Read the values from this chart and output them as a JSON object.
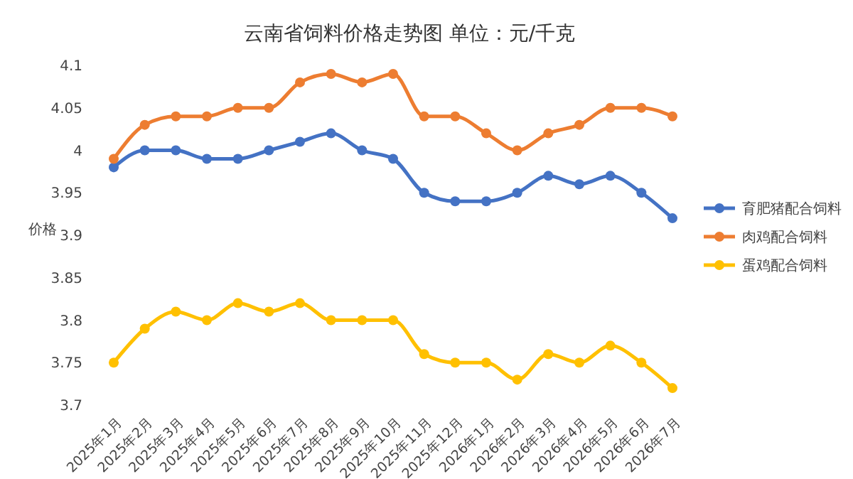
{
  "chart_data": {
    "type": "line",
    "title": "云南省饲料价格走势图        单位：元/千克",
    "ylabel": "价格",
    "categories": [
      "2025年1月",
      "2025年2月",
      "2025年3月",
      "2025年4月",
      "2025年5月",
      "2025年6月",
      "2025年7月",
      "2025年8月",
      "2025年9月",
      "2025年10月",
      "2025年11月",
      "2025年12月",
      "2026年1月",
      "2026年2月",
      "2026年3月",
      "2026年4月",
      "2026年5月",
      "2026年6月",
      "2026年7月"
    ],
    "series": [
      {
        "name": "育肥猪配合饲料",
        "color": "#4472c4",
        "values": [
          3.98,
          4.0,
          4.0,
          3.99,
          3.99,
          4.0,
          4.01,
          4.02,
          4.0,
          3.99,
          3.95,
          3.94,
          3.94,
          3.95,
          3.97,
          3.96,
          3.97,
          3.95,
          3.92
        ]
      },
      {
        "name": "肉鸡配合饲料",
        "color": "#ed7d31",
        "values": [
          3.99,
          4.03,
          4.04,
          4.04,
          4.05,
          4.05,
          4.08,
          4.09,
          4.08,
          4.09,
          4.04,
          4.04,
          4.02,
          4.0,
          4.02,
          4.03,
          4.05,
          4.05,
          4.04
        ]
      },
      {
        "name": "蛋鸡配合饲料",
        "color": "#ffc000",
        "values": [
          3.75,
          3.79,
          3.81,
          3.8,
          3.82,
          3.81,
          3.82,
          3.8,
          3.8,
          3.8,
          3.76,
          3.75,
          3.75,
          3.73,
          3.76,
          3.75,
          3.77,
          3.75,
          3.72
        ]
      }
    ],
    "ylim": [
      3.7,
      4.1
    ],
    "yticks": [
      3.7,
      3.75,
      3.8,
      3.85,
      3.9,
      3.95,
      4,
      4.05,
      4.1
    ],
    "grid": false,
    "legend": "right",
    "marker": "circle",
    "line_style": "solid"
  }
}
